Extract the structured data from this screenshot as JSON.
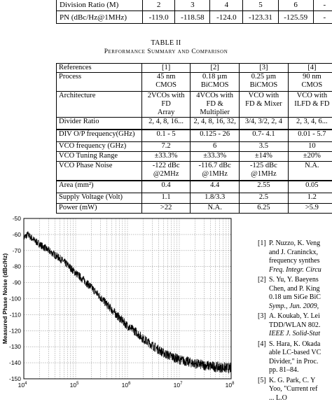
{
  "top_table": {
    "rows": [
      {
        "label": "Division Ratio (M)",
        "cells": [
          "2",
          "3",
          "4",
          "5",
          "6"
        ]
      },
      {
        "label": "PN (dBc/Hz@1MHz)",
        "cells": [
          "-119.0",
          "-118.58",
          "-124.0",
          "-123.31",
          "-125.59"
        ]
      }
    ],
    "trailing": "-"
  },
  "table2": {
    "number": "TABLE II",
    "title": "Performance Summary and Comparison",
    "headers": [
      "References",
      "[1]",
      "[2]",
      "[3]",
      "[4]"
    ],
    "rows": [
      {
        "label": "Process",
        "cells": [
          "45 nm\nCMOS",
          "0.18 µm\nBiCMOS",
          "0.25 µm\nBiCMOS",
          "90 nm\nCMOS"
        ]
      },
      {
        "label": "Architecture",
        "cells": [
          "2VCOs with FD\nArray",
          "4VCOs with\nFD & Multiplier",
          "VCO with\nFD & Mixer",
          "VCO with\nILFD & FD"
        ]
      },
      {
        "label": "Divider Ratio",
        "cells": [
          "2, 4, 8, 16...",
          "2, 4, 8, 16, 32,",
          "3/4, 3/2, 2, 4",
          "2, 3, 4, 6..."
        ]
      },
      {
        "label": "DIV O/P frequency(GHz)",
        "cells": [
          "0.1 - 5",
          "0.125 - 26",
          "0.7- 4.1",
          "0.01 - 5.7"
        ]
      },
      {
        "label": "VCO frequency (GHz)",
        "cells": [
          "7.2",
          "6",
          "3.5",
          "10"
        ]
      },
      {
        "label": "VCO Tuning Range",
        "cells": [
          "±33.3%",
          "±33.3%",
          "±14%",
          "±20%"
        ]
      },
      {
        "label": "VCO Phase Noise",
        "cells": [
          "-122 dBc\n@2MHz",
          "-116.7 dBc\n@1MHz",
          "-125 dBc\n@1MHz",
          "N.A."
        ]
      },
      {
        "label": "Area (mm²)",
        "cells": [
          "0.4",
          "4.4",
          "2.55",
          "0.05"
        ]
      },
      {
        "label": "Supply Voltage (Volt)",
        "cells": [
          "1.1",
          "1.8/3.3",
          "2.5",
          "1.2"
        ]
      },
      {
        "label": "Power (mW)",
        "cells": [
          ">22",
          "N.A.",
          "6.25",
          ">5.9"
        ]
      }
    ]
  },
  "chart_data": {
    "type": "line",
    "title": "",
    "xlabel": "Frequency Offset (Hz)",
    "ylabel": "Measured Phase Noise (dBc/Hz)",
    "xscale": "log",
    "xlim": [
      10000,
      100000000
    ],
    "ylim": [
      -150,
      -50
    ],
    "yticks": [
      "-50",
      "-60",
      "-70",
      "-80",
      "-90",
      "-100",
      "-110",
      "-120",
      "-130",
      "-140",
      "-150"
    ],
    "xticks": [
      "10^4",
      "10^5",
      "10^6",
      "10^7",
      "10^8"
    ],
    "grid": true,
    "series": [
      {
        "name": "",
        "x": [
          10000,
          12000,
          15000,
          20000,
          30000,
          50000,
          70000,
          100000,
          150000,
          200000,
          300000,
          500000,
          700000,
          1000000,
          1500000,
          2000000,
          3000000,
          5000000,
          7000000,
          10000000,
          15000000,
          20000000,
          30000000,
          50000000,
          70000000,
          100000000
        ],
        "y": [
          -62,
          -60,
          -63,
          -66,
          -70,
          -75,
          -79,
          -84,
          -89,
          -93,
          -99,
          -107,
          -112,
          -117,
          -121,
          -125,
          -129,
          -134,
          -136,
          -138,
          -139.5,
          -140.5,
          -141.5,
          -142.5,
          -143,
          -143.5
        ]
      }
    ]
  },
  "references": [
    {
      "num": "[1]",
      "lines": [
        {
          "t": "P. Nuzzo, K. Veng",
          "i": false
        },
        {
          "t": "and J. Craninckx,",
          "i": false
        },
        {
          "t": "frequency synthes",
          "i": false
        },
        {
          "t": "Freq. Integr. Circu",
          "i": true
        }
      ]
    },
    {
      "num": "[2]",
      "lines": [
        {
          "t": "S. Yu, Y. Baeyens",
          "i": false
        },
        {
          "t": "Chen, and P. King",
          "i": false
        },
        {
          "t": "0.18 um SiGe BiC",
          "i": false
        },
        {
          "t": "Symp., Jun. 2009,",
          "i": true
        }
      ]
    },
    {
      "num": "[3]",
      "lines": [
        {
          "t": "A. Koukab, Y. Lei",
          "i": false
        },
        {
          "t": "TDD/WLAN 802.",
          "i": false
        },
        {
          "t": "IEEE J. Solid-Stat",
          "i": true
        }
      ]
    },
    {
      "num": "[4]",
      "lines": [
        {
          "t": "S. Hara, K. Okada",
          "i": false
        },
        {
          "t": "able LC-based VC",
          "i": false
        },
        {
          "t": "Divider,\" in Proc.",
          "i": false
        },
        {
          "t": "pp. 81–84.",
          "i": false
        }
      ]
    },
    {
      "num": "[5]",
      "lines": [
        {
          "t": "K. G. Park, C. Y",
          "i": false
        },
        {
          "t": "Yoo, \"Current ref",
          "i": false
        },
        {
          "t": "... L.O",
          "i": false
        }
      ]
    }
  ]
}
